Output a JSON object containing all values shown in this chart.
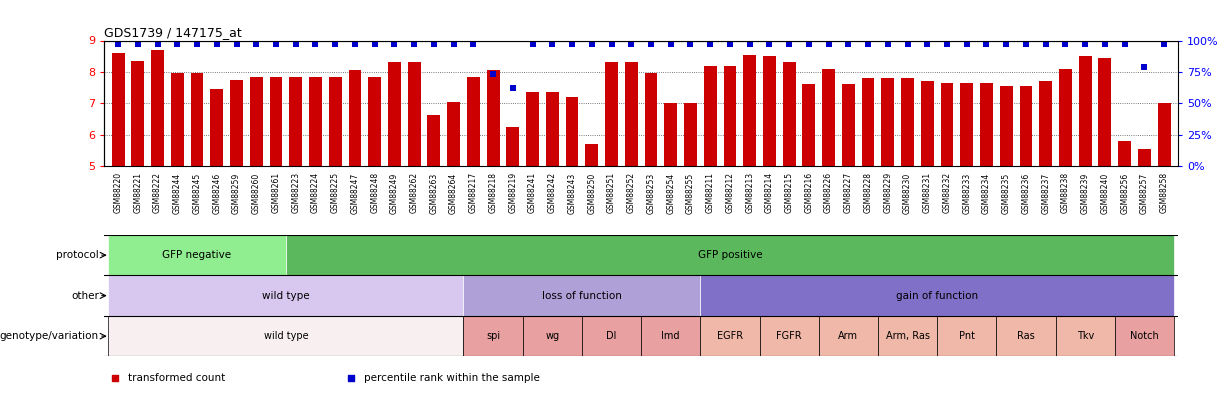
{
  "title": "GDS1739 / 147175_at",
  "samples": [
    "GSM88220",
    "GSM88221",
    "GSM88222",
    "GSM88244",
    "GSM88245",
    "GSM88246",
    "GSM88259",
    "GSM88260",
    "GSM88261",
    "GSM88223",
    "GSM88224",
    "GSM88225",
    "GSM88247",
    "GSM88248",
    "GSM88249",
    "GSM88262",
    "GSM88263",
    "GSM88264",
    "GSM88217",
    "GSM88218",
    "GSM88219",
    "GSM88241",
    "GSM88242",
    "GSM88243",
    "GSM88250",
    "GSM88251",
    "GSM88252",
    "GSM88253",
    "GSM88254",
    "GSM88255",
    "GSM88211",
    "GSM88212",
    "GSM88213",
    "GSM88214",
    "GSM88215",
    "GSM88216",
    "GSM88226",
    "GSM88227",
    "GSM88228",
    "GSM88229",
    "GSM88230",
    "GSM88231",
    "GSM88232",
    "GSM88233",
    "GSM88234",
    "GSM88235",
    "GSM88236",
    "GSM88237",
    "GSM88238",
    "GSM88239",
    "GSM88240",
    "GSM88256",
    "GSM88257",
    "GSM88258"
  ],
  "bar_values": [
    8.6,
    8.35,
    8.7,
    7.95,
    7.95,
    7.45,
    7.75,
    7.85,
    7.85,
    7.85,
    7.85,
    7.85,
    8.05,
    7.85,
    8.3,
    8.3,
    6.62,
    7.05,
    7.85,
    8.05,
    6.25,
    7.35,
    7.35,
    7.2,
    5.7,
    8.3,
    8.3,
    7.95,
    7.0,
    7.0,
    8.2,
    8.2,
    8.55,
    8.5,
    8.3,
    7.6,
    8.1,
    7.6,
    7.8,
    7.8,
    7.8,
    7.7,
    7.65,
    7.65,
    7.65,
    7.55,
    7.55,
    7.7,
    8.1,
    8.5,
    8.45,
    5.8,
    5.55,
    7.0
  ],
  "percentile_values": [
    97,
    97,
    97,
    97,
    97,
    97,
    97,
    97,
    97,
    97,
    97,
    97,
    97,
    97,
    97,
    97,
    97,
    97,
    97,
    73,
    62,
    97,
    97,
    97,
    97,
    97,
    97,
    97,
    97,
    97,
    97,
    97,
    97,
    97,
    97,
    97,
    97,
    97,
    97,
    97,
    97,
    97,
    97,
    97,
    97,
    97,
    97,
    97,
    97,
    97,
    97,
    97,
    79,
    97
  ],
  "bar_color": "#cc0000",
  "percentile_color": "#0000cc",
  "ylim_left": [
    5,
    9
  ],
  "ylim_right": [
    0,
    100
  ],
  "yticks_left": [
    5,
    6,
    7,
    8,
    9
  ],
  "yticks_right": [
    0,
    25,
    50,
    75,
    100
  ],
  "ytick_labels_right": [
    "0%",
    "25%",
    "50%",
    "75%",
    "100%"
  ],
  "protocol_groups": [
    {
      "label": "GFP negative",
      "start": 0,
      "end": 8,
      "color": "#90ee90"
    },
    {
      "label": "GFP positive",
      "start": 9,
      "end": 53,
      "color": "#5cb85c"
    }
  ],
  "other_groups": [
    {
      "label": "wild type",
      "start": 0,
      "end": 17,
      "color": "#d8c8f0"
    },
    {
      "label": "loss of function",
      "start": 18,
      "end": 29,
      "color": "#b0a0d8"
    },
    {
      "label": "gain of function",
      "start": 30,
      "end": 53,
      "color": "#8070c8"
    }
  ],
  "genotype_groups": [
    {
      "label": "wild type",
      "start": 0,
      "end": 17,
      "color": "#f8f0f0"
    },
    {
      "label": "spi",
      "start": 18,
      "end": 20,
      "color": "#e8a0a0"
    },
    {
      "label": "wg",
      "start": 21,
      "end": 23,
      "color": "#e8a0a0"
    },
    {
      "label": "Dl",
      "start": 24,
      "end": 26,
      "color": "#e8a0a0"
    },
    {
      "label": "Imd",
      "start": 27,
      "end": 29,
      "color": "#e8a0a0"
    },
    {
      "label": "EGFR",
      "start": 30,
      "end": 32,
      "color": "#f0b8a8"
    },
    {
      "label": "FGFR",
      "start": 33,
      "end": 35,
      "color": "#f0b8a8"
    },
    {
      "label": "Arm",
      "start": 36,
      "end": 38,
      "color": "#f0b8a8"
    },
    {
      "label": "Arm, Ras",
      "start": 39,
      "end": 41,
      "color": "#f0b8a8"
    },
    {
      "label": "Pnt",
      "start": 42,
      "end": 44,
      "color": "#f0b8a8"
    },
    {
      "label": "Ras",
      "start": 45,
      "end": 47,
      "color": "#f0b8a8"
    },
    {
      "label": "Tkv",
      "start": 48,
      "end": 50,
      "color": "#f0b8a8"
    },
    {
      "label": "Notch",
      "start": 51,
      "end": 53,
      "color": "#e8a0a0"
    }
  ],
  "row_labels": [
    "protocol",
    "other",
    "genotype/variation"
  ],
  "legend_items": [
    {
      "label": "transformed count",
      "color": "#cc0000"
    },
    {
      "label": "percentile rank within the sample",
      "color": "#0000cc"
    }
  ]
}
